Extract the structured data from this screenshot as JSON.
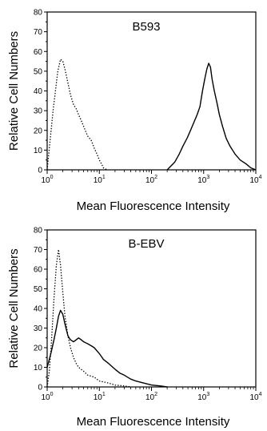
{
  "chart_data": [
    {
      "type": "line",
      "title": "B593",
      "xlabel": "Mean Fluorescence Intensity",
      "ylabel": "Relative Cell Numbers",
      "xscale": "log",
      "xlim": [
        1,
        10000
      ],
      "ylim": [
        0,
        80
      ],
      "x_ticks": [
        {
          "base": "10",
          "exp": "0",
          "value": 1
        },
        {
          "base": "10",
          "exp": "1",
          "value": 10
        },
        {
          "base": "10",
          "exp": "2",
          "value": 100
        },
        {
          "base": "10",
          "exp": "3",
          "value": 1000
        },
        {
          "base": "10",
          "exp": "4",
          "value": 10000
        }
      ],
      "y_ticks": [
        "0",
        "10",
        "20",
        "30",
        "40",
        "50",
        "60",
        "70",
        "80"
      ],
      "grid": false,
      "legend": "none",
      "series": [
        {
          "line_style": "dotted",
          "x": [
            1,
            1.3,
            1.6,
            1.8,
            2.0,
            2.2,
            2.5,
            2.8,
            3.2,
            3.6,
            4.0,
            4.5,
            5.0,
            6.0,
            7.0,
            8.0,
            9.0,
            10,
            11,
            12,
            14
          ],
          "y": [
            0,
            30,
            50,
            56,
            55,
            51,
            44,
            38,
            33,
            31,
            28,
            25,
            22,
            17,
            15,
            11,
            8,
            5,
            3,
            1,
            0
          ]
        },
        {
          "line_style": "solid",
          "x": [
            200,
            280,
            340,
            400,
            480,
            560,
            650,
            750,
            850,
            950,
            1050,
            1150,
            1250,
            1350,
            1450,
            1600,
            1800,
            2000,
            2300,
            2700,
            3200,
            4000,
            5000,
            6500,
            8000,
            10000
          ],
          "y": [
            0,
            4,
            8,
            12,
            16,
            20,
            24,
            28,
            32,
            40,
            46,
            51,
            54,
            52,
            46,
            40,
            34,
            28,
            22,
            16,
            12,
            8,
            5,
            3,
            1,
            0
          ]
        }
      ]
    },
    {
      "type": "line",
      "title": "B-EBV",
      "xlabel": "Mean Fluorescence Intensity",
      "ylabel": "Relative Cell Numbers",
      "xscale": "log",
      "xlim": [
        1,
        10000
      ],
      "ylim": [
        0,
        80
      ],
      "x_ticks": [
        {
          "base": "10",
          "exp": "0",
          "value": 1
        },
        {
          "base": "10",
          "exp": "1",
          "value": 10
        },
        {
          "base": "10",
          "exp": "2",
          "value": 100
        },
        {
          "base": "10",
          "exp": "3",
          "value": 1000
        },
        {
          "base": "10",
          "exp": "4",
          "value": 10000
        }
      ],
      "y_ticks": [
        "0",
        "10",
        "20",
        "30",
        "40",
        "50",
        "60",
        "70",
        "80"
      ],
      "grid": false,
      "legend": "none",
      "series": [
        {
          "line_style": "dotted",
          "x": [
            1,
            1.1,
            1.2,
            1.35,
            1.5,
            1.65,
            1.8,
            2.0,
            2.2,
            2.5,
            2.8,
            3.2,
            3.6,
            4.0,
            5.0,
            6.0,
            8.0,
            10,
            15,
            20,
            30,
            40
          ],
          "y": [
            0,
            8,
            22,
            45,
            62,
            70,
            62,
            48,
            36,
            26,
            20,
            15,
            12,
            10,
            8,
            6,
            5,
            3,
            2,
            1,
            0.5,
            0
          ]
        },
        {
          "line_style": "solid",
          "x": [
            1,
            1.1,
            1.2,
            1.35,
            1.5,
            1.65,
            1.8,
            2.0,
            2.2,
            2.5,
            2.8,
            3.2,
            3.6,
            4.0,
            4.5,
            5.0,
            6.0,
            7.0,
            8.0,
            10,
            12,
            15,
            20,
            25,
            30,
            40,
            50,
            70,
            100,
            150,
            200
          ],
          "y": [
            10,
            14,
            18,
            24,
            30,
            36,
            39,
            37,
            32,
            26,
            24,
            23,
            24,
            25,
            24,
            23,
            22,
            21,
            20,
            17,
            14,
            12,
            9,
            7,
            6,
            4,
            3,
            2,
            1,
            0.5,
            0
          ]
        }
      ]
    }
  ]
}
